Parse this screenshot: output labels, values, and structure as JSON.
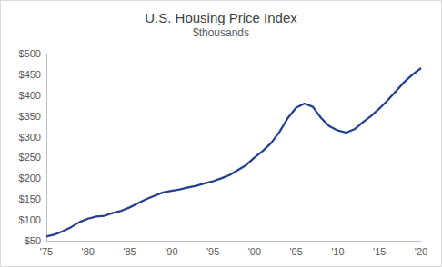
{
  "chart_data": {
    "type": "line",
    "title": "U.S. Housing Price Index",
    "subtitle": "$thousands",
    "color": "#24408e",
    "grid": false,
    "x": [
      1975,
      1976,
      1977,
      1978,
      1979,
      1980,
      1981,
      1982,
      1983,
      1984,
      1985,
      1986,
      1987,
      1988,
      1989,
      1990,
      1991,
      1992,
      1993,
      1994,
      1995,
      1996,
      1997,
      1998,
      1999,
      2000,
      2001,
      2002,
      2003,
      2004,
      2005,
      2006,
      2007,
      2008,
      2009,
      2010,
      2011,
      2012,
      2013,
      2014,
      2015,
      2016,
      2017,
      2018,
      2019,
      2020
    ],
    "values": [
      60,
      65,
      73,
      83,
      95,
      103,
      108,
      110,
      117,
      122,
      130,
      140,
      150,
      158,
      166,
      170,
      173,
      178,
      182,
      188,
      193,
      200,
      208,
      220,
      232,
      250,
      266,
      285,
      312,
      345,
      370,
      380,
      372,
      345,
      325,
      315,
      310,
      318,
      335,
      350,
      368,
      388,
      410,
      432,
      450,
      465
    ],
    "xlim": [
      1975,
      2020
    ],
    "xticks": [
      {
        "value": 1975,
        "label": "'75"
      },
      {
        "value": 1980,
        "label": "'80"
      },
      {
        "value": 1985,
        "label": "'85"
      },
      {
        "value": 1990,
        "label": "'90"
      },
      {
        "value": 1995,
        "label": "'95"
      },
      {
        "value": 2000,
        "label": "'00"
      },
      {
        "value": 2005,
        "label": "'05"
      },
      {
        "value": 2010,
        "label": "'10"
      },
      {
        "value": 2015,
        "label": "'15"
      },
      {
        "value": 2020,
        "label": "'20"
      }
    ],
    "ylim": [
      50,
      500
    ],
    "yticks": [
      {
        "value": 50,
        "label": "$50"
      },
      {
        "value": 100,
        "label": "$100"
      },
      {
        "value": 150,
        "label": "$150"
      },
      {
        "value": 200,
        "label": "$200"
      },
      {
        "value": 250,
        "label": "$250"
      },
      {
        "value": 300,
        "label": "$300"
      },
      {
        "value": 350,
        "label": "$350"
      },
      {
        "value": 400,
        "label": "$400"
      },
      {
        "value": 450,
        "label": "$450"
      },
      {
        "value": 500,
        "label": "$500"
      }
    ]
  }
}
